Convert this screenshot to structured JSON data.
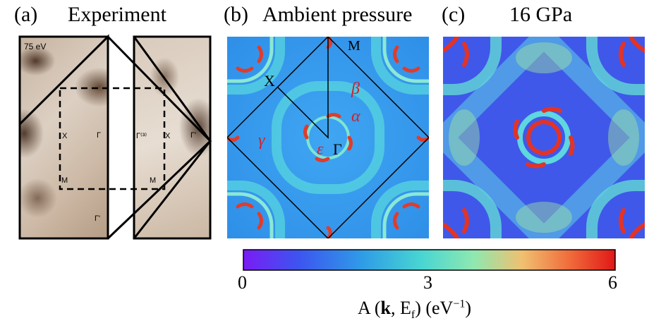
{
  "panels": {
    "a": {
      "tag": "(a)",
      "title": "Experiment"
    },
    "b": {
      "tag": "(b)",
      "title": "Ambient pressure"
    },
    "c": {
      "tag": "(c)",
      "title": "16 GPa"
    }
  },
  "arpes": {
    "energy": "75 eV",
    "points": {
      "X": "X",
      "Gamma": "Γ",
      "M": "M",
      "Gamma_prime": "Γ'",
      "Gamma3": "Γ⁽³⁾",
      "Gamma_prime_b": "Γ'",
      "X_b": "X",
      "M_b": "M"
    }
  },
  "sim": {
    "points": {
      "M": "M",
      "X": "X",
      "Gamma": "Γ"
    },
    "bands": {
      "beta": "β",
      "alpha": "α",
      "gamma": "γ",
      "epsilon": "ε"
    }
  },
  "colorbar": {
    "ticks": [
      "0",
      "3",
      "6"
    ],
    "label_prefix": "A (",
    "label_k": "k",
    "label_mid": ", E",
    "label_sub": "f",
    "label_suffix": ") (eV",
    "label_sup": "−1",
    "label_end": ")",
    "min": 0,
    "max": 6
  },
  "colors": {
    "band_red": "#d1202a",
    "blue": "#3a5cf0",
    "cyan": "#5fd6e6"
  }
}
